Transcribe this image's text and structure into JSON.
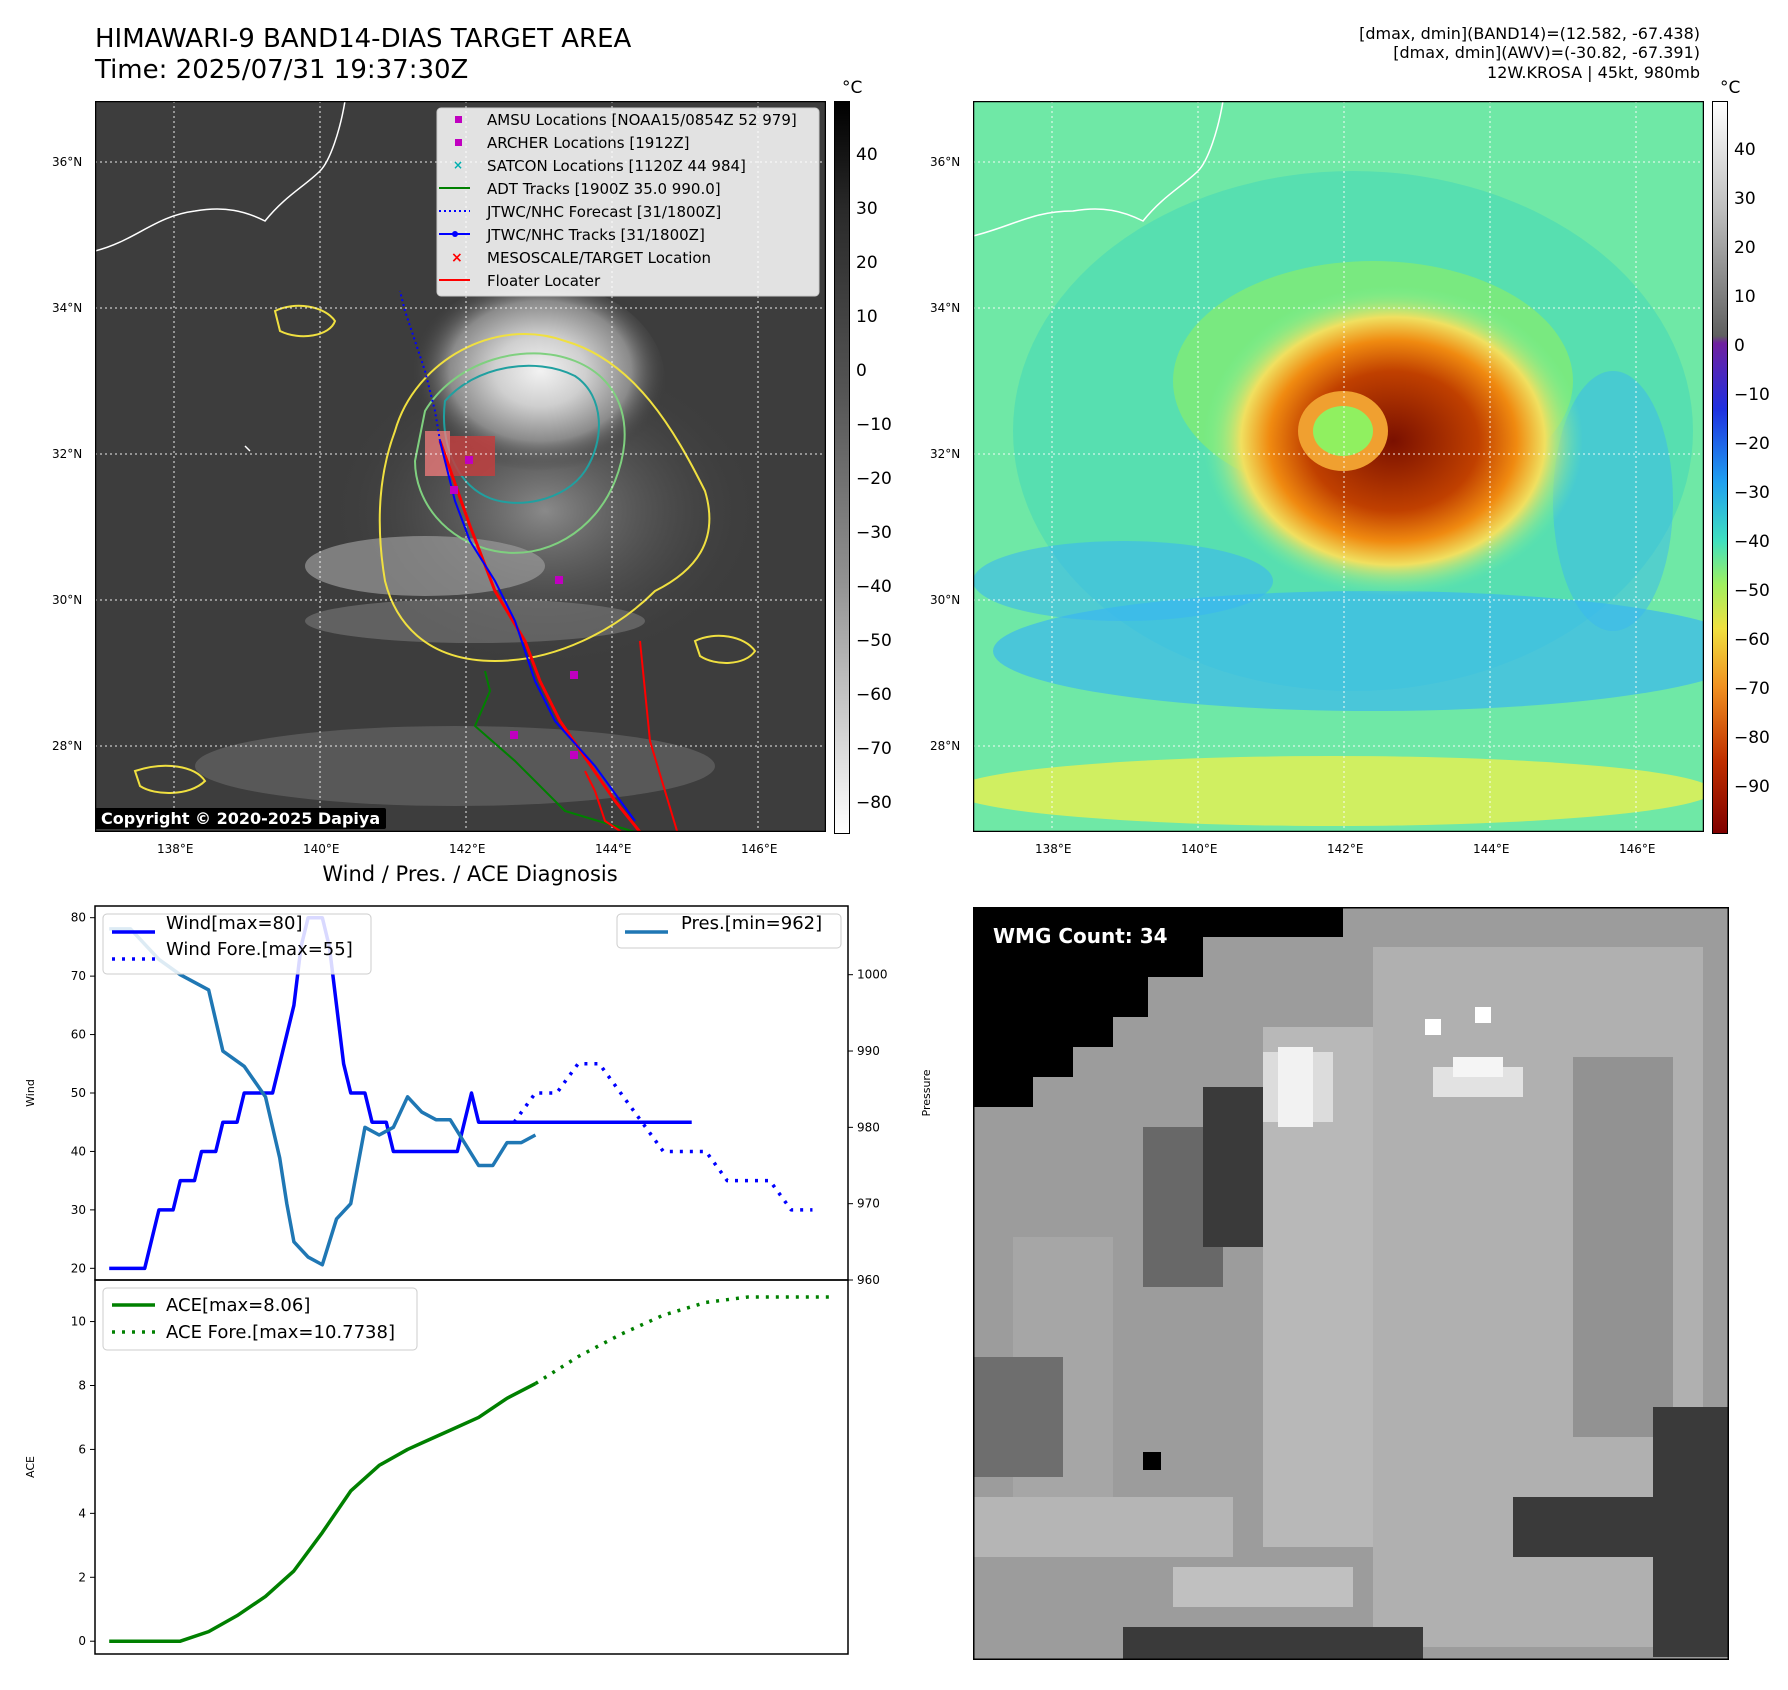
{
  "header": {
    "title_line1": "HIMAWARI-9 BAND14-DIAS TARGET AREA",
    "title_line2": "Time: 2025/07/31 19:37:30Z",
    "info_line1": "[dmax, dmin](BAND14)=(12.582, -67.438)",
    "info_line2": "[dmax, dmin](AWV)=(-30.82, -67.391)",
    "info_line3": "12W.KROSA | 45kt, 980mb"
  },
  "map_axes": {
    "lon_labels": [
      "138°E",
      "140°E",
      "142°E",
      "144°E",
      "146°E"
    ],
    "lat_labels": [
      "36°N",
      "34°N",
      "32°N",
      "30°N",
      "28°N"
    ]
  },
  "colorbars": {
    "unit": "°C",
    "band14_ticks": [
      "40",
      "30",
      "20",
      "10",
      "0",
      "−10",
      "−20",
      "−30",
      "−40",
      "−50",
      "−60",
      "−70",
      "−80"
    ],
    "awv_ticks": [
      "40",
      "30",
      "20",
      "10",
      "0",
      "−10",
      "−20",
      "−30",
      "−40",
      "−50",
      "−60",
      "−70",
      "−80",
      "−90"
    ]
  },
  "map_legend": [
    {
      "label": "AMSU Locations [NOAA15/0854Z 52 979]",
      "marker": "square",
      "color": "#c000c0"
    },
    {
      "label": "ARCHER Locations [1912Z]",
      "marker": "square",
      "color": "#c000c0"
    },
    {
      "label": "SATCON Locations [1120Z 44 984]",
      "marker": "x",
      "color": "#00b0b0"
    },
    {
      "label": "ADT Tracks [1900Z 35.0 990.0]",
      "marker": "line",
      "color": "#008000"
    },
    {
      "label": "JTWC/NHC Forecast [31/1800Z]",
      "marker": "dotted",
      "color": "#0000ff"
    },
    {
      "label": "JTWC/NHC Tracks [31/1800Z]",
      "marker": "line-dot",
      "color": "#0000ff"
    },
    {
      "label": "MESOSCALE/TARGET Location",
      "marker": "x",
      "color": "#ff0000"
    },
    {
      "label": "Floater Locater",
      "marker": "line",
      "color": "#ff0000"
    }
  ],
  "copyright": "Copyright © 2020-2025 Dapiya",
  "wmg_label": "WMG Count: 34",
  "chart_data": [
    {
      "type": "line",
      "title": "Wind / Pres. / ACE Diagnosis",
      "ylabel": "Wind",
      "ylabel_right": "Pressure",
      "ylim": [
        18,
        82
      ],
      "ylim_right": [
        960,
        1009
      ],
      "yticks": [
        20,
        30,
        40,
        50,
        60,
        70,
        80
      ],
      "yticks_right": [
        960,
        970,
        980,
        990,
        1000
      ],
      "series": [
        {
          "name": "Wind[max=80]",
          "axis": "left",
          "style": "solid",
          "color": "#0000ff",
          "x": [
            0,
            1,
            2,
            3,
            4,
            5,
            6,
            7,
            8,
            9,
            10,
            11,
            12,
            13,
            14,
            15,
            16,
            17,
            18,
            19,
            20,
            21,
            22,
            23,
            24,
            25,
            26,
            27,
            28,
            29,
            30,
            31,
            32,
            33,
            34,
            35,
            36,
            37,
            38,
            39,
            40,
            41,
            42,
            43,
            44,
            45,
            46,
            47,
            48,
            49,
            50,
            51,
            52,
            53,
            54,
            55,
            56,
            57,
            58,
            59,
            60,
            61,
            62,
            63,
            64,
            65,
            66,
            67,
            68,
            69,
            70,
            71,
            72,
            73,
            74,
            75,
            76,
            77,
            78,
            79,
            80,
            81,
            82
          ],
          "values": [
            20,
            20,
            20,
            20,
            20,
            20,
            25,
            30,
            30,
            30,
            35,
            35,
            35,
            40,
            40,
            40,
            45,
            45,
            45,
            50,
            50,
            50,
            50,
            50,
            55,
            60,
            65,
            75,
            80,
            80,
            80,
            75,
            65,
            55,
            50,
            50,
            50,
            45,
            45,
            45,
            40,
            40,
            40,
            40,
            40,
            40,
            40,
            40,
            40,
            40,
            45,
            50,
            45,
            45,
            45,
            45,
            45,
            45,
            45,
            45,
            45,
            45,
            45,
            45,
            45,
            45,
            45,
            45,
            45,
            45,
            45,
            45,
            45,
            45,
            45,
            45,
            45,
            45,
            45,
            45,
            45,
            45,
            45
          ]
        },
        {
          "name": "Wind Fore.[max=55]",
          "axis": "left",
          "style": "dotted",
          "color": "#0000ff",
          "x": [
            57,
            60,
            63,
            66,
            69,
            72,
            75,
            78,
            81,
            84,
            87,
            90,
            93,
            96,
            99
          ],
          "values": [
            45,
            50,
            50,
            55,
            55,
            50,
            45,
            40,
            40,
            40,
            35,
            35,
            35,
            30,
            30
          ]
        },
        {
          "name": "Pres.[min=962]",
          "axis": "right",
          "style": "solid",
          "color": "#1f77b4",
          "x": [
            0,
            3,
            5,
            7,
            10,
            12,
            14,
            16,
            19,
            22,
            24,
            25,
            26,
            28,
            30,
            32,
            34,
            36,
            38,
            40,
            42,
            44,
            46,
            48,
            50,
            52,
            54,
            56,
            58,
            60
          ],
          "values": [
            1006,
            1006,
            1004,
            1002,
            1000,
            999,
            998,
            990,
            988,
            984,
            976,
            970,
            965,
            963,
            962,
            968,
            970,
            980,
            979,
            980,
            984,
            982,
            981,
            981,
            978,
            975,
            975,
            978,
            978,
            979
          ]
        }
      ]
    },
    {
      "type": "line",
      "ylabel": "ACE",
      "ylim": [
        -0.4,
        11.3
      ],
      "yticks": [
        0,
        2,
        4,
        6,
        8,
        10
      ],
      "series": [
        {
          "name": "ACE[max=8.06]",
          "style": "solid",
          "color": "#008000",
          "x": [
            0,
            4,
            8,
            10,
            14,
            18,
            22,
            26,
            30,
            34,
            38,
            42,
            44,
            48,
            52,
            56,
            60
          ],
          "values": [
            0,
            0,
            0,
            0,
            0.3,
            0.8,
            1.4,
            2.2,
            3.4,
            4.7,
            5.5,
            6.0,
            6.2,
            6.6,
            7.0,
            7.6,
            8.06
          ]
        },
        {
          "name": "ACE Fore.[max=10.7738]",
          "style": "dotted",
          "color": "#008000",
          "x": [
            60,
            66,
            72,
            78,
            84,
            90,
            96,
            102
          ],
          "values": [
            8.06,
            8.9,
            9.6,
            10.2,
            10.6,
            10.77,
            10.77,
            10.77
          ]
        }
      ]
    }
  ]
}
